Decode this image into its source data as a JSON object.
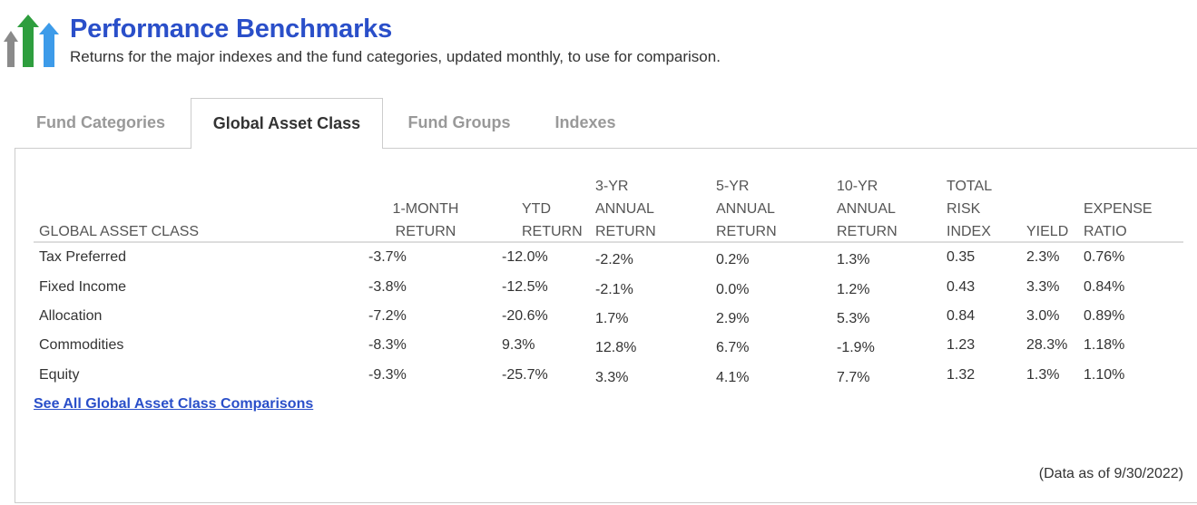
{
  "header": {
    "title": "Performance Benchmarks",
    "subtitle": "Returns for the major indexes and the fund categories, updated monthly, to use for comparison.",
    "logo_icon": "rising-arrows-icon",
    "logo_colors": [
      "#8a8a8a",
      "#2e9e3e",
      "#3d9be9"
    ]
  },
  "tabs": [
    {
      "label": "Fund Categories",
      "active": false
    },
    {
      "label": "Global Asset Class",
      "active": true
    },
    {
      "label": "Fund Groups",
      "active": false
    },
    {
      "label": "Indexes",
      "active": false
    }
  ],
  "table": {
    "columns": [
      {
        "lines": [
          "GLOBAL ASSET CLASS"
        ]
      },
      {
        "lines": [
          "1-MONTH",
          "RETURN"
        ]
      },
      {
        "lines": [
          "YTD",
          "RETURN"
        ]
      },
      {
        "lines": [
          "3-YR",
          "ANNUAL",
          "RETURN"
        ]
      },
      {
        "lines": [
          "5-YR",
          "ANNUAL",
          "RETURN"
        ]
      },
      {
        "lines": [
          "10-YR",
          "ANNUAL",
          "RETURN"
        ]
      },
      {
        "lines": [
          "TOTAL",
          "RISK",
          "INDEX"
        ]
      },
      {
        "lines": [
          "YIELD"
        ]
      },
      {
        "lines": [
          "EXPENSE",
          "RATIO"
        ]
      }
    ],
    "rows": [
      [
        "Tax Preferred",
        "-3.7%",
        "-12.0%",
        "-2.2%",
        "0.2%",
        "1.3%",
        "0.35",
        "2.3%",
        "0.76%"
      ],
      [
        "Fixed Income",
        "-3.8%",
        "-12.5%",
        "-2.1%",
        "0.0%",
        "1.2%",
        "0.43",
        "3.3%",
        "0.84%"
      ],
      [
        "Allocation",
        "-7.2%",
        "-20.6%",
        "1.7%",
        "2.9%",
        "5.3%",
        "0.84",
        "3.0%",
        "0.89%"
      ],
      [
        "Commodities",
        "-8.3%",
        "9.3%",
        "12.8%",
        "6.7%",
        "-1.9%",
        "1.23",
        "28.3%",
        "1.18%"
      ],
      [
        "Equity",
        "-9.3%",
        "-25.7%",
        "3.3%",
        "4.1%",
        "7.7%",
        "1.32",
        "1.3%",
        "1.10%"
      ]
    ]
  },
  "link_label": "See All Global Asset Class Comparisons",
  "as_of": "(Data as of 9/30/2022)"
}
